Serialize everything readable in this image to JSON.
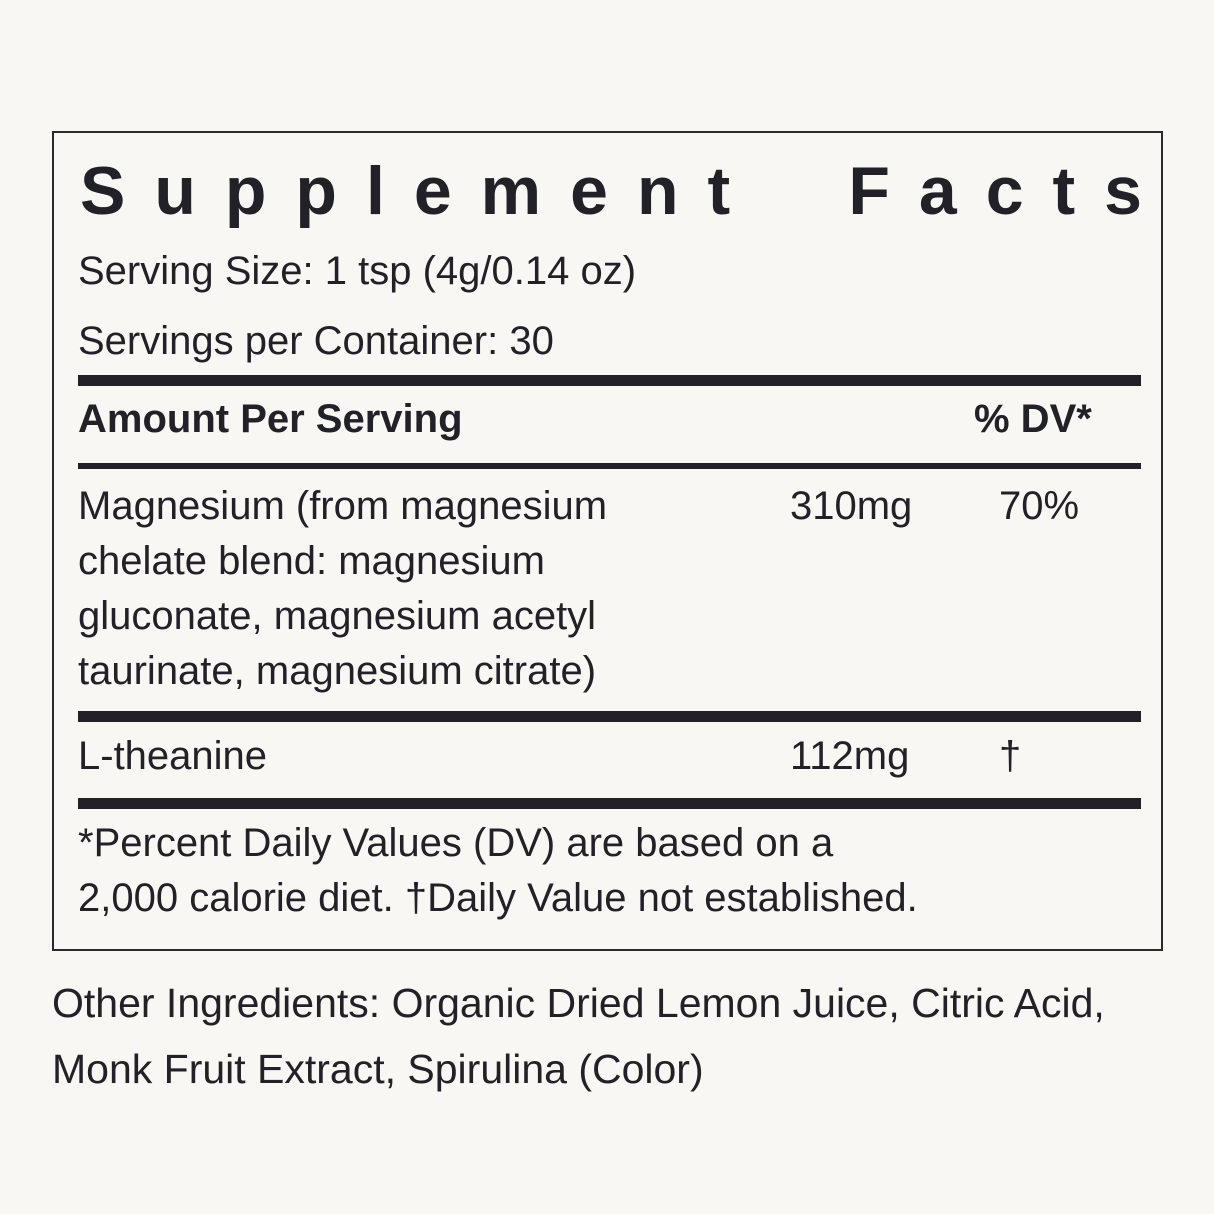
{
  "label": {
    "title_words": [
      "Supplement",
      "Facts"
    ],
    "serving_size": "Serving Size: 1 tsp (4g/0.14 oz)",
    "servings_per_container": "Servings per Container: 30",
    "header": {
      "amount": "Amount Per Serving",
      "dv": "% DV*"
    },
    "rows": [
      {
        "name_lines": [
          "Magnesium (from magnesium",
          "chelate blend: magnesium",
          "gluconate, magnesium acetyl",
          "taurinate, magnesium citrate)"
        ],
        "amount": "310mg",
        "dv": "70%"
      },
      {
        "name_lines": [
          "L-theanine"
        ],
        "amount": "112mg",
        "dv": "†"
      }
    ],
    "footnote_lines": [
      "*Percent Daily Values (DV) are based on a",
      "2,000 calorie diet.  †Daily Value not established."
    ]
  },
  "other_ingredients": "Other Ingredients: Organic Dried Lemon Juice, Citric Acid, Monk Fruit Extract, Spirulina (Color)"
}
